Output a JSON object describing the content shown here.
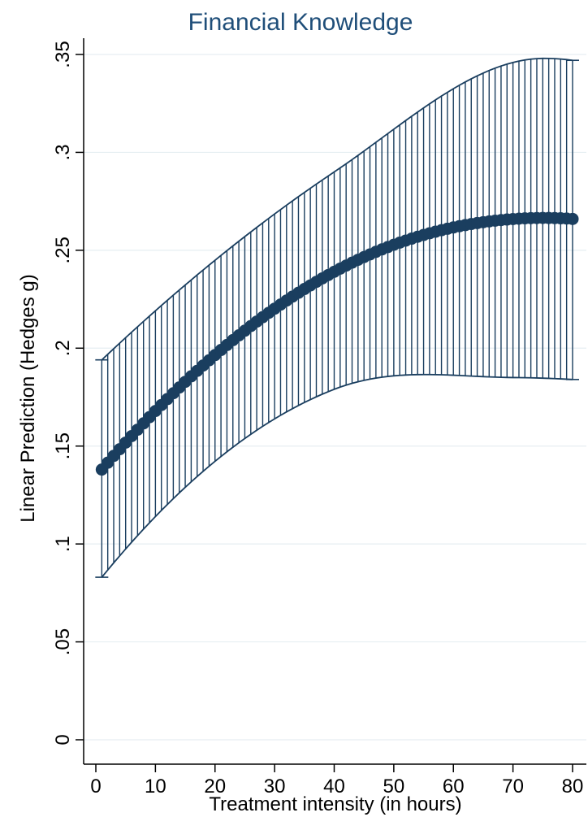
{
  "chart_data": {
    "type": "line",
    "title": "Financial Knowledge",
    "xlabel": "Treatment intensity (in hours)",
    "ylabel": "Linear Prediction (Hedges g)",
    "xlim": [
      0,
      80
    ],
    "ylim": [
      0,
      0.35
    ],
    "x_ticks": [
      0,
      10,
      20,
      30,
      40,
      50,
      60,
      70,
      80
    ],
    "x_tick_labels": [
      "0",
      "10",
      "20",
      "30",
      "40",
      "50",
      "60",
      "70",
      "80"
    ],
    "y_ticks": [
      0,
      0.05,
      0.1,
      0.15,
      0.2,
      0.25,
      0.3,
      0.35
    ],
    "y_tick_labels": [
      "0",
      ".05",
      ".1",
      ".15",
      ".2",
      ".25",
      ".3",
      ".35"
    ],
    "grid": true,
    "series": [
      {
        "model": "quadratic prediction with confidence interval",
        "x_range": [
          1,
          80
        ],
        "x_step": 1,
        "prediction_points": [
          {
            "x": 1,
            "y": 0.138
          },
          {
            "x": 40,
            "y": 0.239
          },
          {
            "x": 75,
            "y": 0.2665
          },
          {
            "x": 80,
            "y": 0.266
          }
        ],
        "ci_upper_points": [
          {
            "x": 1,
            "y": 0.194
          },
          {
            "x": 40,
            "y": 0.29
          },
          {
            "x": 75,
            "y": 0.348
          },
          {
            "x": 80,
            "y": 0.347
          }
        ],
        "ci_lower_points": [
          {
            "x": 1,
            "y": 0.083
          },
          {
            "x": 40,
            "y": 0.179
          },
          {
            "x": 70,
            "y": 0.185
          },
          {
            "x": 80,
            "y": 0.184
          }
        ],
        "color": "#1a3e5f"
      }
    ]
  }
}
